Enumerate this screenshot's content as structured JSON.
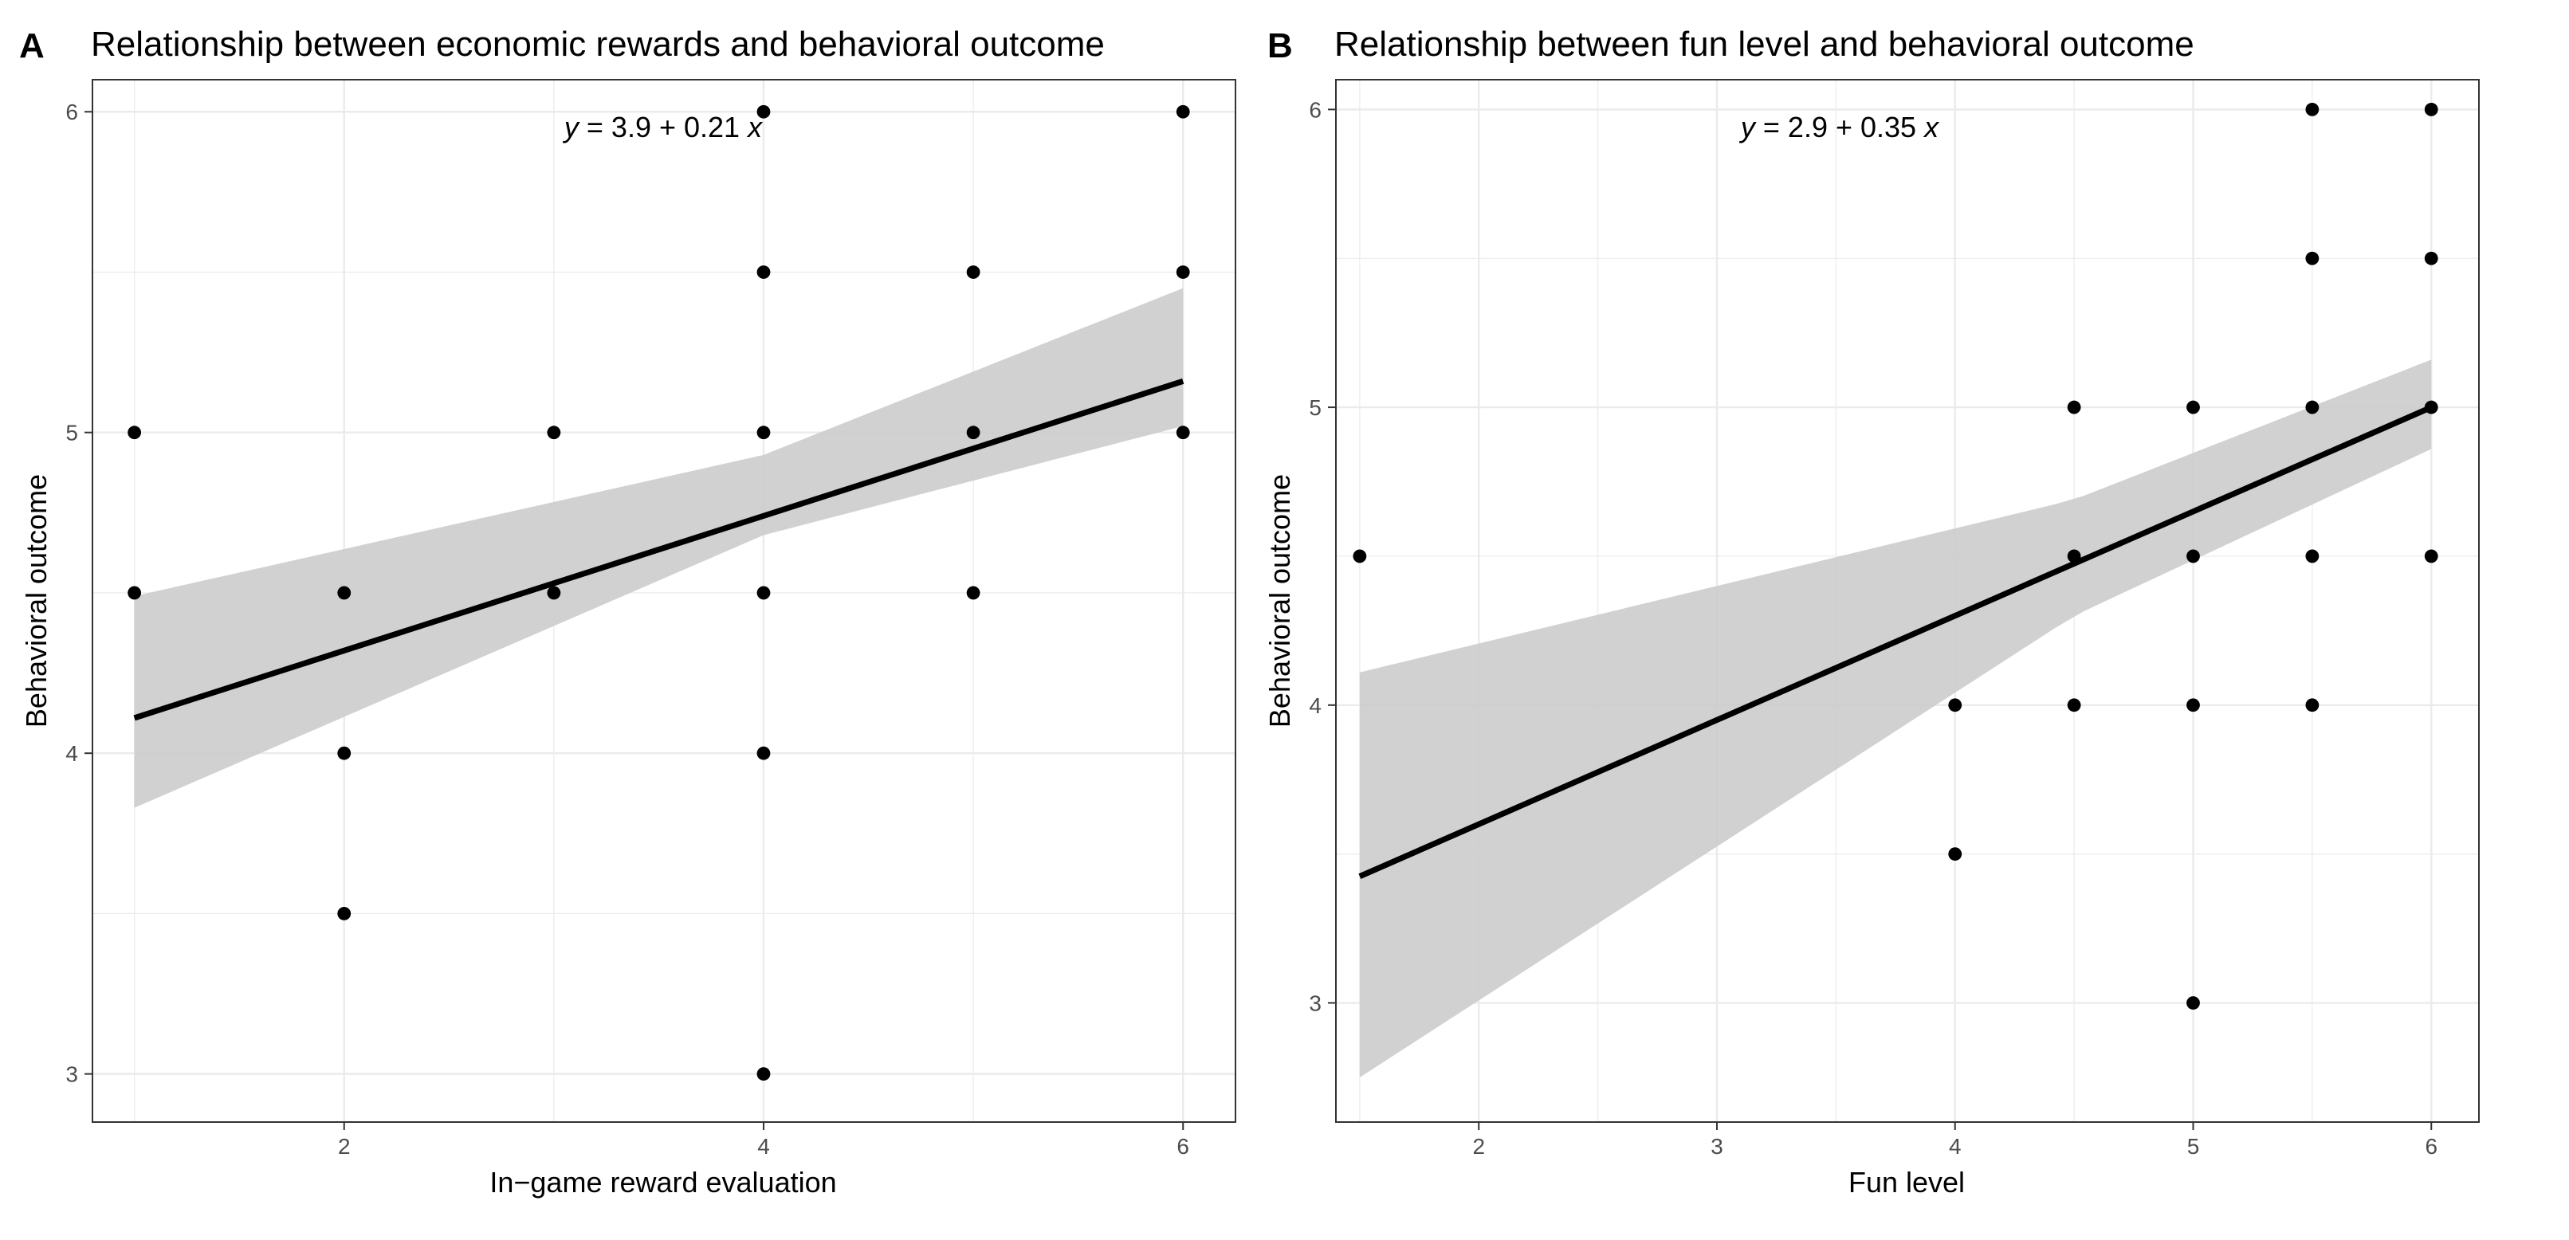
{
  "colors": {
    "points": "#000000",
    "fit_line": "#000000",
    "confidence_band": "#cccccc",
    "panel_border": "#333333",
    "gridline": "#ebebeb"
  },
  "chart_data": [
    {
      "type": "scatter",
      "panel_label": "A",
      "title": "Relationship between economic rewards and behavioral outcome",
      "xlabel": "In−game reward evaluation",
      "ylabel": "Behavioral outcome",
      "equation": {
        "y": "y",
        "rhs": " = 3.9 + 0.21 ",
        "x": "x"
      },
      "xlim": [
        0.8,
        6.25
      ],
      "ylim": [
        2.85,
        6.1
      ],
      "x_ticks": [
        2,
        4,
        6
      ],
      "y_ticks": [
        3,
        4,
        5,
        6
      ],
      "grid": true,
      "regression": {
        "intercept": 3.9,
        "slope": 0.21,
        "x_range": [
          1,
          6
        ]
      },
      "confidence_band": {
        "x": [
          1,
          4,
          6
        ],
        "lower": [
          3.83,
          4.68,
          5.02
        ],
        "upper": [
          4.49,
          4.93,
          5.45
        ]
      },
      "points": [
        {
          "x": 1,
          "y": 5
        },
        {
          "x": 1,
          "y": 4.5
        },
        {
          "x": 2,
          "y": 4.5
        },
        {
          "x": 2,
          "y": 4
        },
        {
          "x": 2,
          "y": 3.5
        },
        {
          "x": 3,
          "y": 5
        },
        {
          "x": 3,
          "y": 4.5
        },
        {
          "x": 4,
          "y": 6
        },
        {
          "x": 4,
          "y": 5.5
        },
        {
          "x": 4,
          "y": 5
        },
        {
          "x": 4,
          "y": 4.5
        },
        {
          "x": 4,
          "y": 4
        },
        {
          "x": 4,
          "y": 3
        },
        {
          "x": 5,
          "y": 5.5
        },
        {
          "x": 5,
          "y": 5
        },
        {
          "x": 5,
          "y": 4.5
        },
        {
          "x": 6,
          "y": 6
        },
        {
          "x": 6,
          "y": 5.5
        },
        {
          "x": 6,
          "y": 5
        }
      ]
    },
    {
      "type": "scatter",
      "panel_label": "B",
      "title": "Relationship between fun level and behavioral outcome",
      "xlabel": "Fun level",
      "ylabel": "Behavioral outcome",
      "equation": {
        "y": "y",
        "rhs": " = 2.9 + 0.35 ",
        "x": "x"
      },
      "xlim": [
        1.4,
        6.2
      ],
      "ylim": [
        2.6,
        6.1
      ],
      "x_ticks": [
        2,
        3,
        4,
        5,
        6
      ],
      "y_ticks": [
        3,
        4,
        5,
        6
      ],
      "grid": true,
      "regression": {
        "intercept": 2.9,
        "slope": 0.35,
        "x_range": [
          1.5,
          6
        ]
      },
      "confidence_band": {
        "x": [
          1.5,
          4.5,
          6
        ],
        "lower": [
          2.75,
          4.3,
          4.86
        ],
        "upper": [
          4.11,
          4.69,
          5.16
        ]
      },
      "points": [
        {
          "x": 1.5,
          "y": 4.5
        },
        {
          "x": 4,
          "y": 4
        },
        {
          "x": 4,
          "y": 3.5
        },
        {
          "x": 4.5,
          "y": 5
        },
        {
          "x": 4.5,
          "y": 4.5
        },
        {
          "x": 4.5,
          "y": 4
        },
        {
          "x": 5,
          "y": 5
        },
        {
          "x": 5,
          "y": 4.5
        },
        {
          "x": 5,
          "y": 4
        },
        {
          "x": 5,
          "y": 3
        },
        {
          "x": 5.5,
          "y": 6
        },
        {
          "x": 5.5,
          "y": 5.5
        },
        {
          "x": 5.5,
          "y": 5
        },
        {
          "x": 5.5,
          "y": 4.5
        },
        {
          "x": 5.5,
          "y": 4
        },
        {
          "x": 6,
          "y": 6
        },
        {
          "x": 6,
          "y": 5.5
        },
        {
          "x": 6,
          "y": 5
        },
        {
          "x": 6,
          "y": 4.5
        }
      ]
    }
  ]
}
